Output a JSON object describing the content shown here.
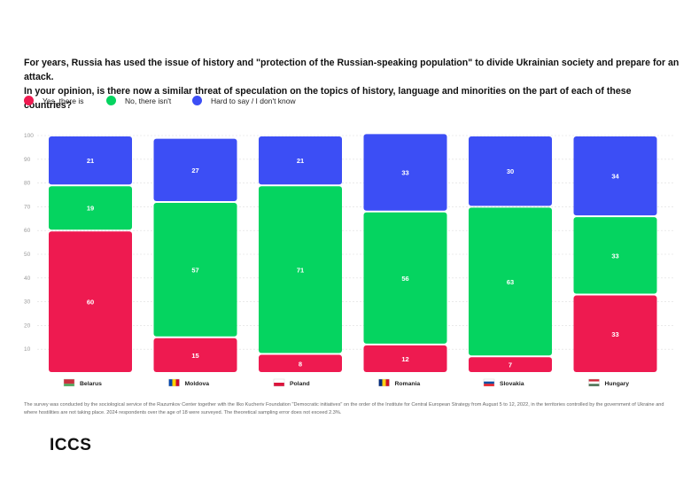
{
  "title_line1": "For years, Russia has used the issue of history and \"protection of the Russian-speaking population\" to divide Ukrainian society and prepare for an attack.",
  "title_line2": "In your opinion, is there now a similar threat of speculation on the topics of history, language and minorities on the part of each of these countries?",
  "legend": [
    {
      "label": "Yes, there is",
      "color": "#ee1a50"
    },
    {
      "label": "No, there isn't",
      "color": "#05d460"
    },
    {
      "label": "Hard to say / I don't know",
      "color": "#3c4ef5"
    }
  ],
  "chart_data": {
    "type": "bar",
    "stacked": true,
    "categories": [
      "Belarus",
      "Moldova",
      "Poland",
      "Romania",
      "Slovakia",
      "Hungary"
    ],
    "series": [
      {
        "name": "Yes, there is",
        "color": "#ee1a50",
        "values": [
          60,
          15,
          8,
          12,
          7,
          33
        ]
      },
      {
        "name": "No, there isn't",
        "color": "#05d460",
        "values": [
          19,
          57,
          71,
          56,
          63,
          33
        ]
      },
      {
        "name": "Hard to say / I don't know",
        "color": "#3c4ef5",
        "values": [
          21,
          27,
          21,
          33,
          30,
          34
        ]
      }
    ],
    "y_ticks": [
      "10",
      "20",
      "30",
      "40",
      "50",
      "60",
      "70",
      "80",
      "90",
      "100"
    ],
    "ylim": [
      0,
      100
    ],
    "flags": {
      "Belarus": [
        "#c8313e",
        "#4aa657"
      ],
      "Moldova": [
        "#0046ae",
        "#ffd200",
        "#cc092f"
      ],
      "Poland": [
        "#ffffff",
        "#dc143c"
      ],
      "Romania": [
        "#002b7f",
        "#fcd116",
        "#ce1126"
      ],
      "Slovakia": [
        "#ffffff",
        "#0b4ea2",
        "#ee1c25"
      ],
      "Hungary": [
        "#ce2939",
        "#ffffff",
        "#477050"
      ]
    }
  },
  "footnote": "The survey was conducted by the sociological service of the Razumkov Center together with the Ilko Kucheriv Foundation \"Democratic initiatives\" on the order of the Institute for Central European Strategy from August 5 to 12, 2022, in the territories controlled by the government of Ukraine and where hostilities are not taking place. 2024 respondents over the age of 18 were surveyed. The theoretical sampling error does not exceed 2.3%.",
  "logo": "ICCS"
}
